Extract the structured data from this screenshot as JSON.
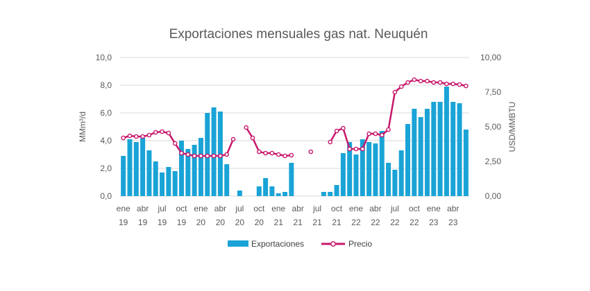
{
  "chart_data": {
    "type": "bar",
    "title": "Exportaciones mensuales gas nat. Neuquén",
    "ylabel": "MMm³/d",
    "y2label": "USD/MMBTU",
    "ylim": [
      0,
      10
    ],
    "y2lim": [
      0,
      10
    ],
    "yticks": [
      "0,0",
      "2,0",
      "4,0",
      "6,0",
      "8,0",
      "10,0"
    ],
    "y2ticks": [
      "0,00",
      "2,50",
      "5,00",
      "7,50",
      "10,00"
    ],
    "xticks": [
      {
        "index": 0,
        "month": "ene",
        "year": "19"
      },
      {
        "index": 3,
        "month": "abr",
        "year": "19"
      },
      {
        "index": 6,
        "month": "jul",
        "year": "19"
      },
      {
        "index": 9,
        "month": "oct",
        "year": "19"
      },
      {
        "index": 12,
        "month": "ene",
        "year": "20"
      },
      {
        "index": 15,
        "month": "abr",
        "year": "20"
      },
      {
        "index": 18,
        "month": "jul",
        "year": "20"
      },
      {
        "index": 21,
        "month": "oct",
        "year": "20"
      },
      {
        "index": 24,
        "month": "ene",
        "year": "21"
      },
      {
        "index": 27,
        "month": "abr",
        "year": "21"
      },
      {
        "index": 30,
        "month": "jul",
        "year": "21"
      },
      {
        "index": 33,
        "month": "oct",
        "year": "21"
      },
      {
        "index": 36,
        "month": "ene",
        "year": "22"
      },
      {
        "index": 39,
        "month": "abr",
        "year": "22"
      },
      {
        "index": 42,
        "month": "jul",
        "year": "22"
      },
      {
        "index": 45,
        "month": "oct",
        "year": "22"
      },
      {
        "index": 48,
        "month": "ene",
        "year": "23"
      },
      {
        "index": 51,
        "month": "abr",
        "year": "23"
      }
    ],
    "categories": [
      "2019-01",
      "2019-02",
      "2019-03",
      "2019-04",
      "2019-05",
      "2019-06",
      "2019-07",
      "2019-08",
      "2019-09",
      "2019-10",
      "2019-11",
      "2019-12",
      "2020-01",
      "2020-02",
      "2020-03",
      "2020-04",
      "2020-05",
      "2020-06",
      "2020-07",
      "2020-08",
      "2020-09",
      "2020-10",
      "2020-11",
      "2020-12",
      "2021-01",
      "2021-02",
      "2021-03",
      "2021-04",
      "2021-05",
      "2021-06",
      "2021-07",
      "2021-08",
      "2021-09",
      "2021-10",
      "2021-11",
      "2021-12",
      "2022-01",
      "2022-02",
      "2022-03",
      "2022-04",
      "2022-05",
      "2022-06",
      "2022-07",
      "2022-08",
      "2022-09",
      "2022-10",
      "2022-11",
      "2022-12",
      "2023-01",
      "2023-02",
      "2023-03",
      "2023-04",
      "2023-05",
      "2023-06"
    ],
    "series": [
      {
        "name": "Exportaciones",
        "axis": "left",
        "kind": "bar",
        "color": "#1aa3d6",
        "values": [
          2.9,
          4.1,
          3.9,
          4.2,
          3.3,
          2.5,
          1.7,
          2.1,
          1.8,
          4.0,
          3.4,
          3.7,
          4.2,
          6.0,
          6.4,
          6.1,
          2.3,
          0,
          0.4,
          0,
          0,
          0.7,
          1.3,
          0.7,
          0.2,
          0.3,
          2.4,
          0,
          0,
          0,
          0,
          0.3,
          0.3,
          0.8,
          3.1,
          3.9,
          3.0,
          4.1,
          3.9,
          3.8,
          4.7,
          2.4,
          1.9,
          3.3,
          5.2,
          6.3,
          5.7,
          6.3,
          6.8,
          6.8,
          7.9,
          6.8,
          6.7,
          4.8
        ]
      },
      {
        "name": "Precio",
        "axis": "right",
        "kind": "line",
        "color": "#c8176b",
        "values": [
          4.2,
          4.35,
          4.3,
          4.3,
          4.4,
          4.6,
          4.65,
          4.55,
          3.8,
          3.1,
          3.0,
          2.9,
          2.9,
          2.9,
          2.9,
          2.9,
          3.0,
          4.1,
          null,
          4.95,
          4.2,
          3.2,
          3.1,
          3.1,
          3.0,
          2.9,
          2.95,
          null,
          null,
          3.2,
          null,
          null,
          3.9,
          4.7,
          4.9,
          3.4,
          3.4,
          3.4,
          4.5,
          4.5,
          4.4,
          4.8,
          7.5,
          7.9,
          8.2,
          8.4,
          8.3,
          8.3,
          8.2,
          8.2,
          8.1,
          8.1,
          8.05,
          7.95
        ]
      }
    ],
    "legend_position": "bottom",
    "grid": true
  }
}
